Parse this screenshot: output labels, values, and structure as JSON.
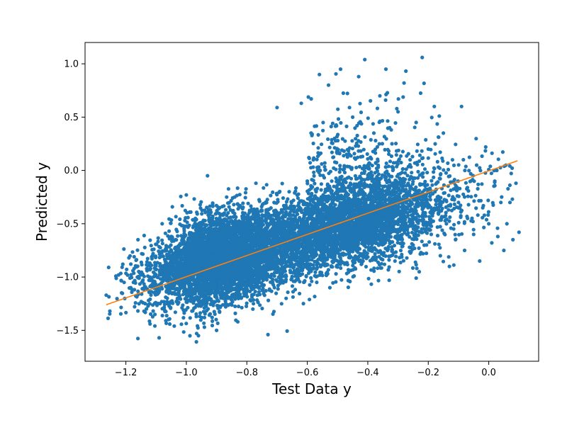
{
  "chart_data": {
    "type": "scatter",
    "title": "",
    "xlabel": "Test Data y",
    "ylabel": "Predicted y",
    "xlim": [
      -1.335,
      0.165
    ],
    "ylim": [
      -1.79,
      1.2
    ],
    "xticks": [
      -1.2,
      -1.0,
      -0.8,
      -0.6,
      -0.4,
      -0.2,
      0.0
    ],
    "xtick_labels": [
      "−1.2",
      "−1.0",
      "−0.8",
      "−0.6",
      "−0.4",
      "−0.2",
      "0.0"
    ],
    "yticks": [
      -1.5,
      -1.0,
      -0.5,
      0.0,
      0.5,
      1.0
    ],
    "ytick_labels": [
      "−1.5",
      "−1.0",
      "−0.5",
      "0.0",
      "0.5",
      "1.0"
    ],
    "grid": false,
    "legend": "none",
    "series": [
      {
        "kind": "scatter",
        "color": "#1f77b4",
        "approx_point_count": 9000,
        "points": [
          [
            -1.265,
            -1.17
          ],
          [
            -1.21,
            -0.88
          ],
          [
            -1.19,
            -0.82
          ],
          [
            -1.175,
            -1.05
          ],
          [
            -1.16,
            -0.65
          ],
          [
            -1.15,
            -0.98
          ],
          [
            -1.14,
            -1.32
          ],
          [
            -1.13,
            -0.94
          ],
          [
            -1.125,
            -1.22
          ],
          [
            -1.12,
            -1.44
          ],
          [
            -1.11,
            -0.78
          ],
          [
            -1.1,
            -1.1
          ],
          [
            -1.09,
            -1.57
          ],
          [
            -1.08,
            -0.5
          ],
          [
            -1.07,
            -0.92
          ],
          [
            -1.06,
            -1.25
          ],
          [
            -1.05,
            -0.62
          ],
          [
            -1.04,
            -1.46
          ],
          [
            -1.03,
            -1.02
          ],
          [
            -1.02,
            -0.8
          ],
          [
            -1.0,
            -0.23
          ],
          [
            -0.99,
            -0.97
          ],
          [
            -0.98,
            -1.2
          ],
          [
            -0.97,
            -0.45
          ],
          [
            -0.96,
            -1.55
          ],
          [
            -0.95,
            -0.85
          ],
          [
            -0.94,
            -1.38
          ],
          [
            -0.93,
            -0.05
          ],
          [
            -0.92,
            -1.1
          ],
          [
            -0.91,
            -0.72
          ],
          [
            -0.9,
            -1.5
          ],
          [
            -0.89,
            -0.35
          ],
          [
            -0.88,
            -0.95
          ],
          [
            -0.87,
            -1.28
          ],
          [
            -0.86,
            -0.6
          ],
          [
            -0.85,
            -1.0
          ],
          [
            -0.84,
            -0.25
          ],
          [
            -0.83,
            -1.42
          ],
          [
            -0.82,
            -0.78
          ],
          [
            -0.81,
            -1.15
          ],
          [
            -0.8,
            -0.5
          ],
          [
            -0.79,
            -0.9
          ],
          [
            -0.78,
            -1.3
          ],
          [
            -0.77,
            -0.12
          ],
          [
            -0.76,
            -0.7
          ],
          [
            -0.75,
            -1.08
          ],
          [
            -0.74,
            -0.42
          ],
          [
            -0.73,
            -1.54
          ],
          [
            -0.72,
            -0.85
          ],
          [
            -0.71,
            -0.3
          ],
          [
            -0.7,
            0.59
          ],
          [
            -0.69,
            -0.98
          ],
          [
            -0.68,
            -0.58
          ],
          [
            -0.67,
            -1.2
          ],
          [
            -0.66,
            -0.2
          ],
          [
            -0.65,
            -0.75
          ],
          [
            -0.64,
            -0.45
          ],
          [
            -0.63,
            -1.02
          ],
          [
            -0.62,
            0.63
          ],
          [
            -0.61,
            -0.62
          ],
          [
            -0.6,
            -0.1
          ],
          [
            -0.59,
            -0.88
          ],
          [
            -0.58,
            0.1
          ],
          [
            -0.57,
            -0.5
          ],
          [
            -0.56,
            0.9
          ],
          [
            -0.55,
            -0.7
          ],
          [
            -0.54,
            -0.28
          ],
          [
            -0.53,
            0.8
          ],
          [
            -0.52,
            -0.55
          ],
          [
            -0.51,
            0.3
          ],
          [
            -0.5,
            -0.85
          ],
          [
            -0.49,
            0.95
          ],
          [
            -0.48,
            -0.4
          ],
          [
            -0.47,
            0.15
          ],
          [
            -0.46,
            -0.65
          ],
          [
            -0.45,
            0.5
          ],
          [
            -0.44,
            -0.22
          ],
          [
            -0.43,
            0.88
          ],
          [
            -0.42,
            -0.58
          ],
          [
            -0.41,
            1.04
          ],
          [
            -0.4,
            0.05
          ],
          [
            -0.39,
            -0.75
          ],
          [
            -0.38,
            0.35
          ],
          [
            -0.37,
            -0.45
          ],
          [
            -0.36,
            0.7
          ],
          [
            -0.35,
            -0.15
          ],
          [
            -0.34,
            0.95
          ],
          [
            -0.33,
            -0.6
          ],
          [
            -0.32,
            0.25
          ],
          [
            -0.31,
            -0.85
          ],
          [
            -0.3,
            0.55
          ],
          [
            -0.29,
            -0.3
          ],
          [
            -0.28,
            0.82
          ],
          [
            -0.27,
            -0.55
          ],
          [
            -0.26,
            0.1
          ],
          [
            -0.25,
            -0.7
          ],
          [
            -0.24,
            0.45
          ],
          [
            -0.23,
            -0.95
          ],
          [
            -0.22,
            1.06
          ],
          [
            -0.21,
            -0.4
          ],
          [
            -0.2,
            0.2
          ],
          [
            -0.19,
            -0.6
          ],
          [
            -0.18,
            0.6
          ],
          [
            -0.17,
            -0.25
          ],
          [
            -0.16,
            -0.8
          ],
          [
            -0.15,
            0.35
          ],
          [
            -0.14,
            -0.5
          ],
          [
            -0.13,
            -0.9
          ],
          [
            -0.12,
            0.1
          ],
          [
            -0.11,
            -0.65
          ],
          [
            -0.1,
            -0.3
          ],
          [
            -0.09,
            0.6
          ],
          [
            -0.08,
            -0.75
          ],
          [
            -0.07,
            -0.45
          ],
          [
            -0.06,
            -0.1
          ],
          [
            -0.05,
            -0.6
          ],
          [
            -0.04,
            0.05
          ],
          [
            -0.03,
            -0.85
          ],
          [
            -0.02,
            -0.35
          ],
          [
            -0.01,
            0.22
          ],
          [
            0.0,
            -0.5
          ],
          [
            0.01,
            -0.68
          ],
          [
            0.02,
            -0.1
          ],
          [
            0.03,
            -0.62
          ],
          [
            0.04,
            -0.3
          ],
          [
            0.05,
            -0.75
          ],
          [
            0.06,
            -0.5
          ],
          [
            0.07,
            -0.3
          ],
          [
            0.08,
            -0.65
          ],
          [
            0.09,
            -0.12
          ],
          [
            0.1,
            -0.58
          ]
        ],
        "trend": {
          "slope": 1.0,
          "intercept": 0.0,
          "residual_sd": 0.22
        }
      },
      {
        "kind": "line",
        "color": "#ff7f0e",
        "x": [
          -1.265,
          0.095
        ],
        "y": [
          -1.26,
          0.09
        ]
      }
    ]
  }
}
